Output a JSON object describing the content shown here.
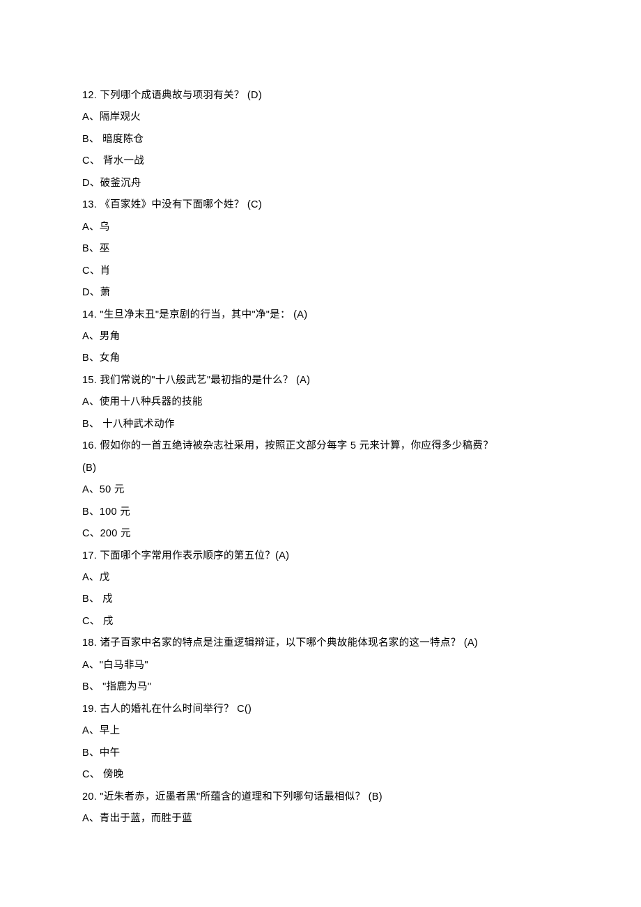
{
  "lines": [
    "12. 下列哪个成语典故与项羽有关？ (D)",
    "A、隔岸观火",
    "B、 暗度陈仓",
    "C、 背水一战",
    "D、破釜沉舟",
    "13. 《百家姓》中没有下面哪个姓？ (C)",
    "A、乌",
    "B、巫",
    "C、肖",
    "D、萧",
    "14. \"生旦净末丑\"是京剧的行当，其中\"净\"是： (A)",
    "A、男角",
    "B、女角",
    "15. 我们常说的\"十八般武艺\"最初指的是什么？ (A)",
    "A、使用十八种兵器的技能",
    "B、 十八种武术动作",
    "16. 假如你的一首五绝诗被杂志社采用，按照正文部分每字 5 元来计算，你应得多少稿费？",
    " (B)",
    "A、50 元",
    "B、100 元",
    "C、200 元",
    "17. 下面哪个字常用作表示顺序的第五位？(A)",
    "A、戊",
    "B、 戍",
    "C、 戌",
    "18. 诸子百家中名家的特点是注重逻辑辩证，以下哪个典故能体现名家的这一特点？  (A)",
    "A、\"白马非马\"",
    "B、 \"指鹿为马\"",
    "19. 古人的婚礼在什么时间举行？ C()",
    "A、早上",
    "B、中午",
    "C、 傍晚",
    "20. \"近朱者赤，近墨者黑\"所蕴含的道理和下列哪句话最相似？ (B)",
    "A、青出于蓝，而胜于蓝"
  ]
}
